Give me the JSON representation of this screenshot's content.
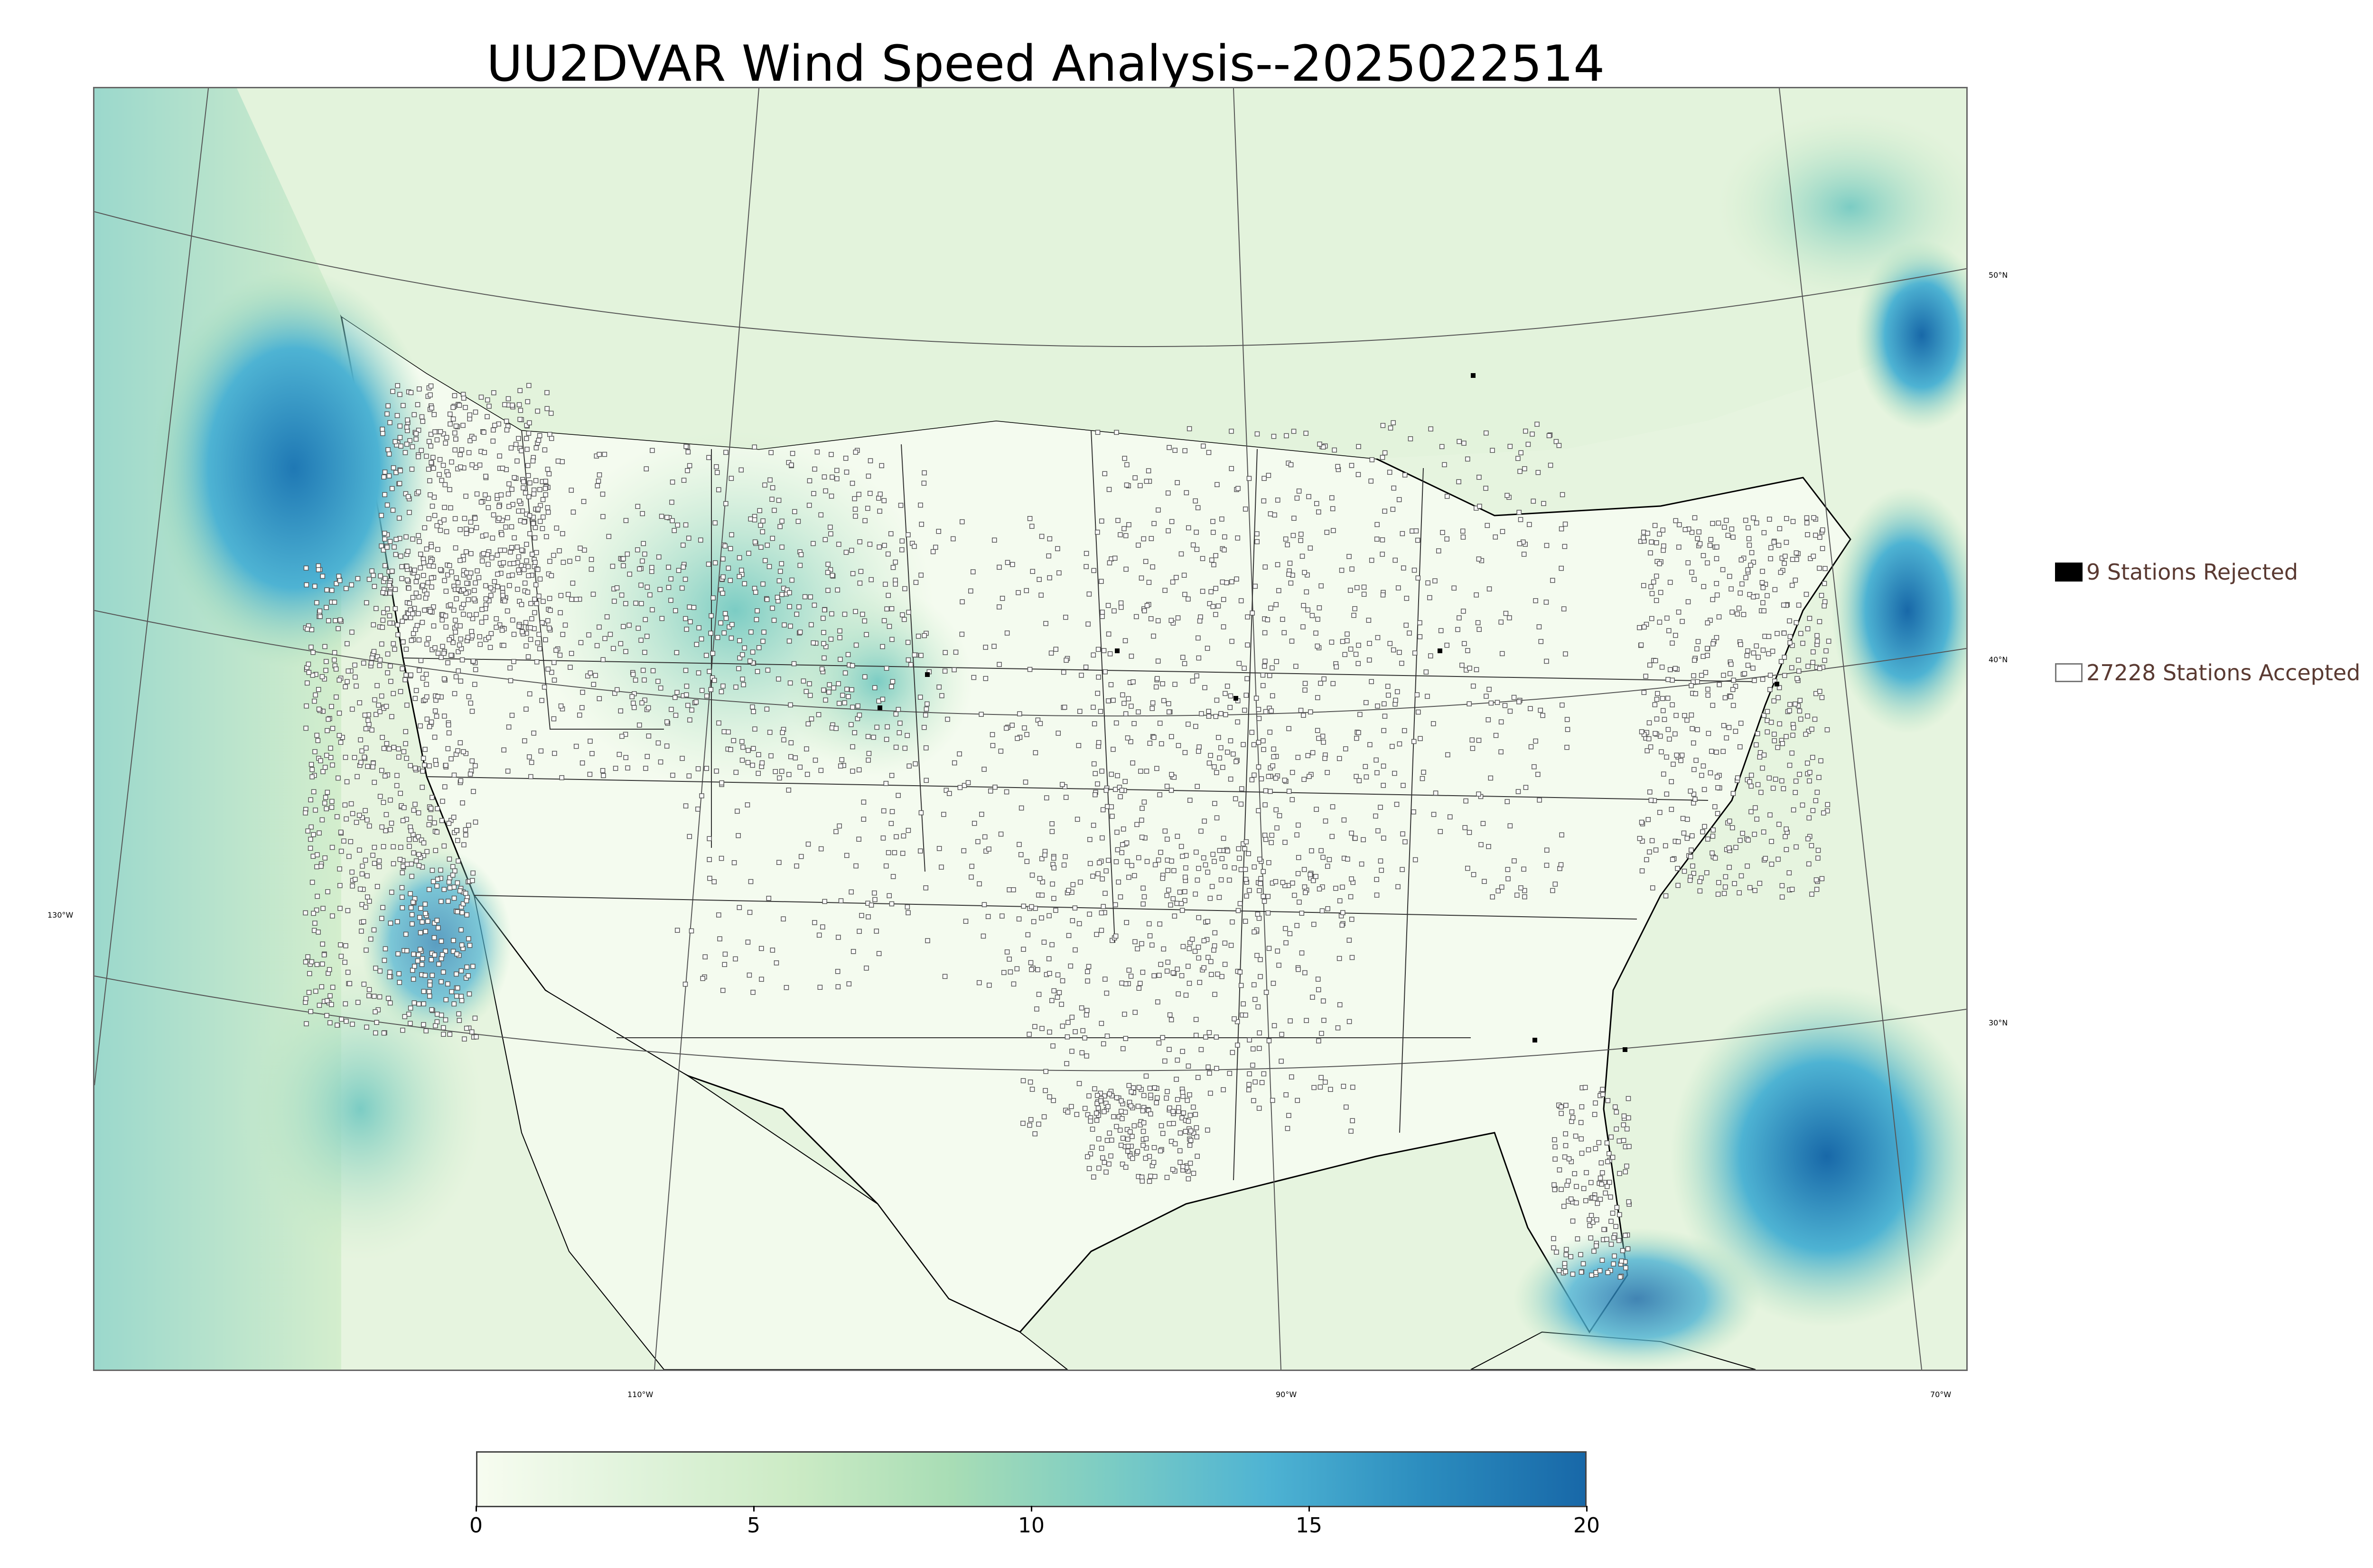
{
  "title": "UU2DVAR Wind Speed Analysis--2025022514",
  "legend": {
    "rejected": {
      "label": "9 Stations Rejected",
      "swatch_color": "#000000"
    },
    "accepted": {
      "label": "27228 Stations Accepted",
      "swatch_color": "#ffffff"
    }
  },
  "latitude_labels": [
    "50°N",
    "40°N",
    "30°N"
  ],
  "longitude_labels": [
    "130°W",
    "110°W",
    "90°W",
    "70°W"
  ],
  "colorbar": {
    "range": [
      0,
      20
    ],
    "ticks": [
      "0",
      "5",
      "10",
      "15",
      "20"
    ],
    "colors": [
      "#f7fcf0",
      "#e0f3db",
      "#ccebc5",
      "#a8ddb5",
      "#7bccc4",
      "#4eb3d3",
      "#2b8cbe",
      "#1868a8"
    ],
    "units": ""
  },
  "map": {
    "colormap": "GnBu",
    "land_color": "#eaf6e4",
    "ocean_high_color": "#2b8cbe",
    "station_marker_color": "#ffffff",
    "station_edge_color": "#555555",
    "border_color": "#000000"
  }
}
